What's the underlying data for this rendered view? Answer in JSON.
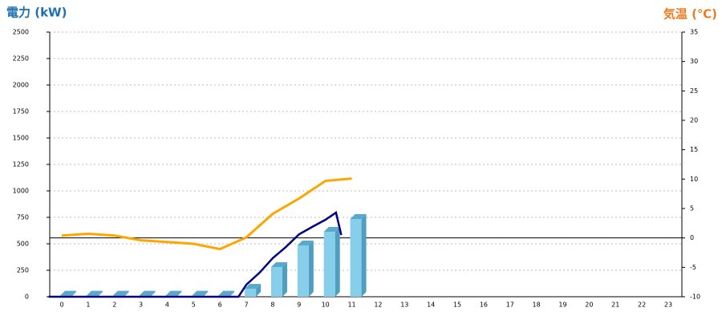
{
  "chart_data": {
    "type": "bar",
    "ylabel": "電力 (kW)",
    "y2label": "気温 (℃)",
    "categories": [
      "0",
      "1",
      "2",
      "3",
      "4",
      "5",
      "6",
      "7",
      "8",
      "9",
      "10",
      "11",
      "12",
      "13",
      "14",
      "15",
      "16",
      "17",
      "18",
      "19",
      "20",
      "21",
      "22",
      "23"
    ],
    "ylim": [
      0,
      2500
    ],
    "yticks": [
      0,
      250,
      500,
      750,
      1000,
      1250,
      1500,
      1750,
      2000,
      2250,
      2500
    ],
    "y2lim": [
      -10,
      35
    ],
    "y2ticks": [
      -10,
      -5,
      0,
      5,
      10,
      15,
      20,
      25,
      30,
      35
    ],
    "grid": true,
    "series": [
      {
        "type": "bar",
        "color": "#87ceeb",
        "values": [
          10,
          10,
          10,
          10,
          10,
          10,
          10,
          76,
          280,
          485,
          614,
          735,
          null,
          null,
          null,
          null,
          null,
          null,
          null,
          null,
          null,
          null,
          null,
          null
        ]
      },
      {
        "type": "line",
        "color": "#000080",
        "x": [
          -0.5,
          6.7,
          7,
          7.5,
          8,
          8.5,
          9,
          9.5,
          10,
          10.4,
          10.6
        ],
        "values": [
          0,
          0,
          114,
          227,
          364,
          470,
          590,
          660,
          727,
          795,
          583
        ]
      },
      {
        "type": "line",
        "color": "#ffa500",
        "axis": "y2",
        "values": [
          0.4,
          0.7,
          0.4,
          -0.4,
          -0.7,
          -1.0,
          -1.9,
          0.1,
          4.1,
          6.7,
          9.7,
          10.1,
          null,
          null,
          null,
          null,
          null,
          null,
          null,
          null,
          null,
          null,
          null,
          null
        ]
      }
    ]
  }
}
